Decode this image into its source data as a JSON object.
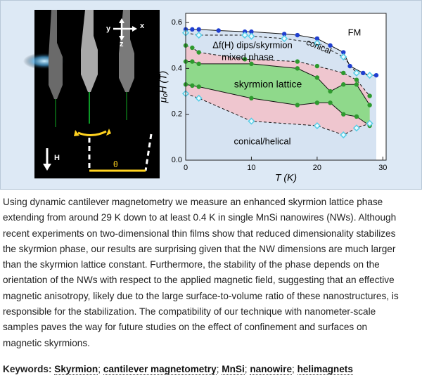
{
  "figure": {
    "photo": {
      "labels": {
        "y": "y",
        "x": "x",
        "z": "z",
        "field": "H",
        "angle": "θ"
      }
    },
    "chart_data": {
      "type": "scatter",
      "x_label": "T (K)",
      "y_label": "μ₀H (T)",
      "xlim": [
        0,
        30.5
      ],
      "ylim": [
        0,
        0.64
      ],
      "xticks": [
        0,
        10,
        20,
        30
      ],
      "yticks": [
        {
          "value": 0,
          "label": "0.0"
        },
        0.2,
        0.4,
        0.6
      ],
      "annotations": {
        "fm": "FM",
        "conical": "conical",
        "dips": "Δf(H) dips/skyrmion",
        "mixed": "mixed phase",
        "skyrmion": "skyrmion lattice",
        "helical": "conical/helical"
      },
      "series": [
        {
          "color": "#1f3fd0",
          "marker": "circle",
          "dashed": false,
          "x": [
            0,
            1,
            2,
            5,
            9,
            10,
            15,
            17,
            20,
            22,
            24,
            25,
            27,
            28,
            29
          ],
          "values": [
            0.57,
            0.57,
            0.57,
            0.565,
            0.56,
            0.56,
            0.55,
            0.545,
            0.53,
            0.5,
            0.47,
            0.41,
            0.38,
            0.37,
            0.37
          ]
        },
        {
          "color": "#55cce6",
          "marker": "diamond",
          "dashed": true,
          "x": [
            0,
            2,
            9,
            10,
            15,
            20,
            24,
            26,
            28
          ],
          "values": [
            0.555,
            0.545,
            0.545,
            0.54,
            0.53,
            0.51,
            0.45,
            0.38,
            0.37
          ]
        },
        {
          "color": "#2e9a2e",
          "marker": "circle",
          "dashed": true,
          "x": [
            0,
            1,
            2,
            9,
            17,
            20,
            24,
            26,
            28
          ],
          "values": [
            0.5,
            0.49,
            0.47,
            0.44,
            0.43,
            0.41,
            0.38,
            0.35,
            0.28
          ]
        },
        {
          "color": "#2e9a2e",
          "marker": "circle",
          "dashed": false,
          "x": [
            0,
            1,
            2,
            10,
            17,
            20,
            22,
            24,
            26,
            28
          ],
          "values": [
            0.43,
            0.43,
            0.42,
            0.42,
            0.4,
            0.36,
            0.3,
            0.33,
            0.33,
            0.24
          ]
        },
        {
          "color": "#2e9a2e",
          "marker": "circle",
          "dashed": false,
          "x": [
            0,
            1,
            2,
            10,
            17,
            20,
            22,
            24,
            26,
            28
          ],
          "values": [
            0.33,
            0.325,
            0.32,
            0.27,
            0.24,
            0.25,
            0.25,
            0.2,
            0.19,
            0.15
          ]
        },
        {
          "color": "#55cce6",
          "marker": "diamond",
          "dashed": true,
          "x": [
            0,
            2,
            10,
            20,
            24,
            26,
            28
          ],
          "values": [
            0.29,
            0.27,
            0.17,
            0.15,
            0.11,
            0.14,
            0.16
          ]
        }
      ]
    }
  },
  "abstract": {
    "lines": [
      "Using dynamic cantilever magnetometry we measure an enhanced skyrmion lattice phase",
      "extending from around 29 K down to at least 0.4 K in single MnSi nanowires (NWs). Although",
      "recent experiments on two-dimensional thin films show that reduced dimensionality stabilizes",
      "the skyrmion phase, our results are surprising given that the NW dimensions are much larger",
      "than the skyrmion lattice constant. Furthermore, the stability of the phase depends on the",
      "orientation of the NWs with respect to the applied magnetic field, suggesting that an effective",
      "magnetic anisotropy, likely due to the large surface-to-volume ratio of these nanostructures, is",
      "responsible for the stabilization. The compatibility of our technique with nanometer-scale",
      "samples paves the way for future studies on the effect of confinement and surfaces on",
      "magnetic skyrmions."
    ]
  },
  "keywords": {
    "label": "Keywords:",
    "items": [
      "Skyrmion",
      "cantilever magnetometry",
      "MnSi",
      "nanowire",
      "helimagnets"
    ],
    "separator": ";"
  }
}
